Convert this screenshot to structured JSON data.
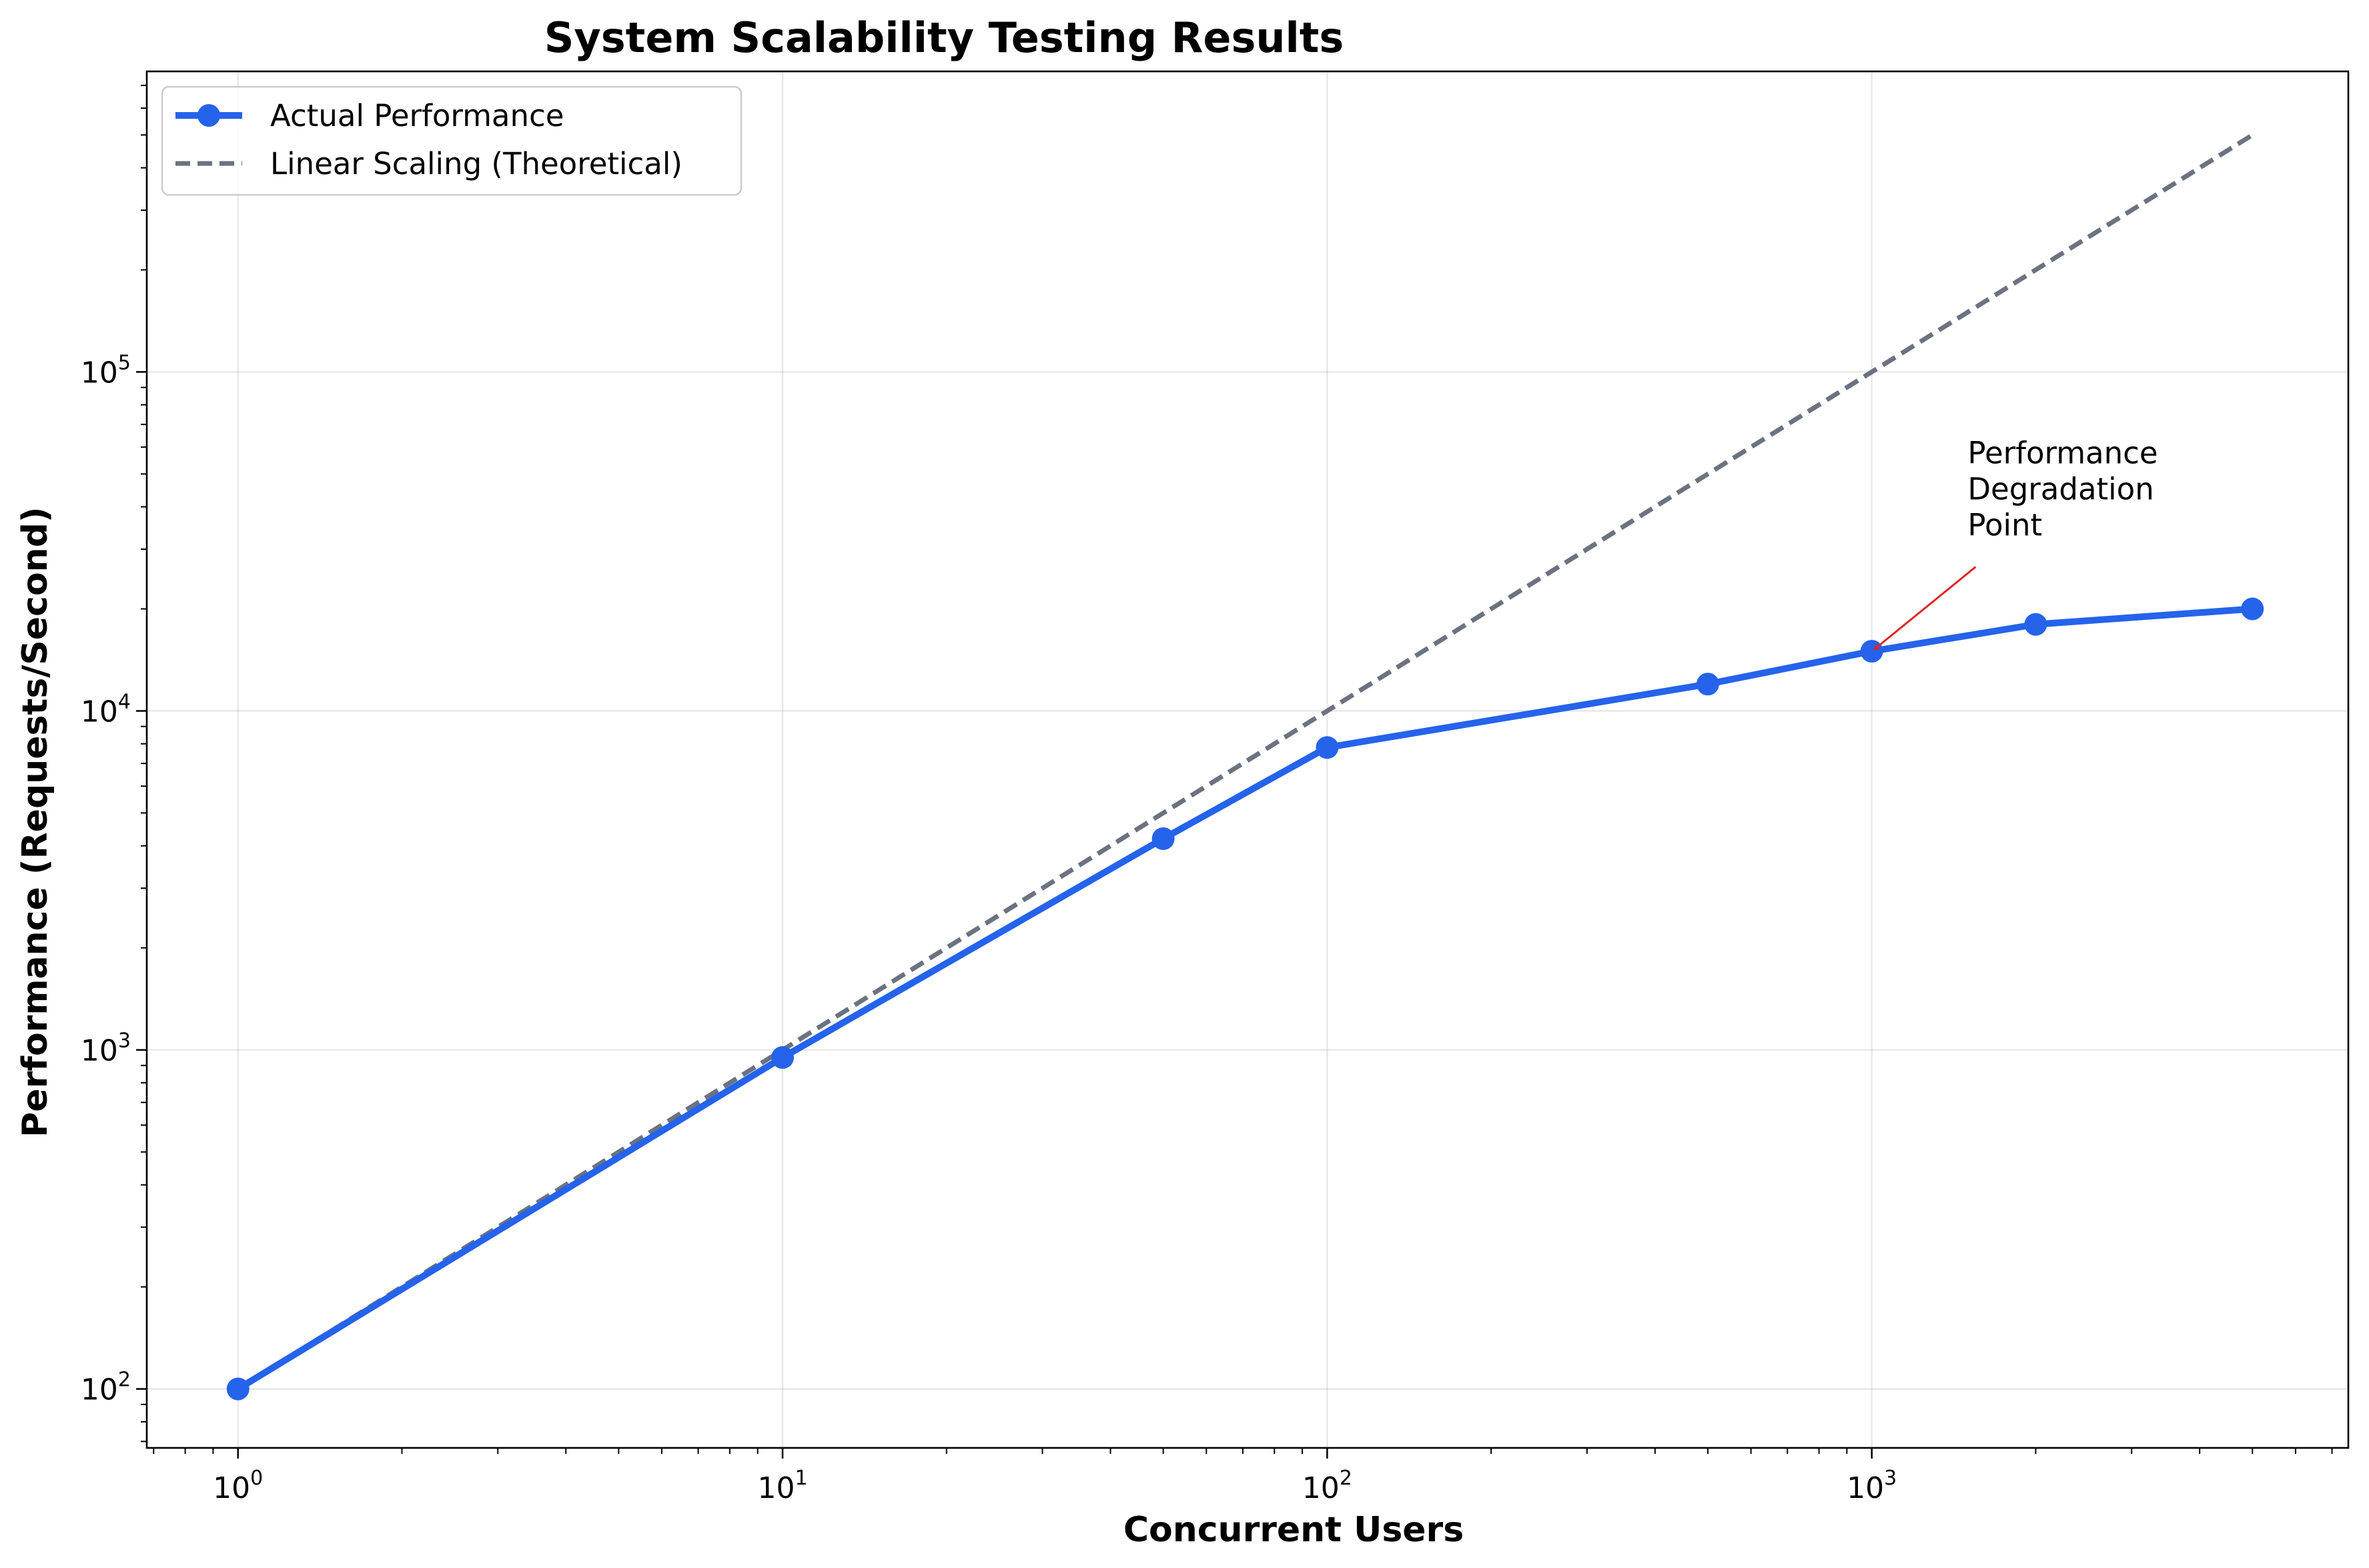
{
  "chart_data": {
    "type": "line",
    "title": "System Scalability Testing Results",
    "xlabel": "Concurrent Users",
    "ylabel": "Performance (Requests/Second)",
    "xscale": "log",
    "yscale": "log",
    "xlim": [
      0.68,
      7500
    ],
    "ylim": [
      67,
      770000
    ],
    "grid": true,
    "legend_position": "upper-left",
    "x_ticks": [
      {
        "value": 1,
        "base": "10",
        "exp": "0"
      },
      {
        "value": 10,
        "base": "10",
        "exp": "1"
      },
      {
        "value": 100,
        "base": "10",
        "exp": "2"
      },
      {
        "value": 1000,
        "base": "10",
        "exp": "3"
      }
    ],
    "y_ticks": [
      {
        "value": 100,
        "base": "10",
        "exp": "2"
      },
      {
        "value": 1000,
        "base": "10",
        "exp": "3"
      },
      {
        "value": 10000,
        "base": "10",
        "exp": "4"
      },
      {
        "value": 100000,
        "base": "10",
        "exp": "5"
      }
    ],
    "series": [
      {
        "name": "Actual Performance",
        "color": "#2563eb",
        "style": "solid",
        "markers": true,
        "x": [
          1,
          10,
          50,
          100,
          500,
          1000,
          2000,
          5000
        ],
        "y": [
          100,
          950,
          4200,
          7800,
          12000,
          15000,
          18000,
          20000
        ]
      },
      {
        "name": "Linear Scaling (Theoretical)",
        "color": "#6b7280",
        "style": "dashed",
        "markers": false,
        "x": [
          1,
          10,
          50,
          100,
          500,
          1000,
          2000,
          5000
        ],
        "y": [
          100,
          1000,
          5000,
          10000,
          50000,
          100000,
          200000,
          500000
        ]
      }
    ],
    "annotation": {
      "lines": [
        "Performance",
        "Degradation",
        "Point"
      ],
      "point": {
        "x": 1000,
        "y": 15000
      },
      "text_anchor": {
        "x": 1500,
        "y": 40000
      },
      "arrow_color": "#dc2626"
    }
  }
}
